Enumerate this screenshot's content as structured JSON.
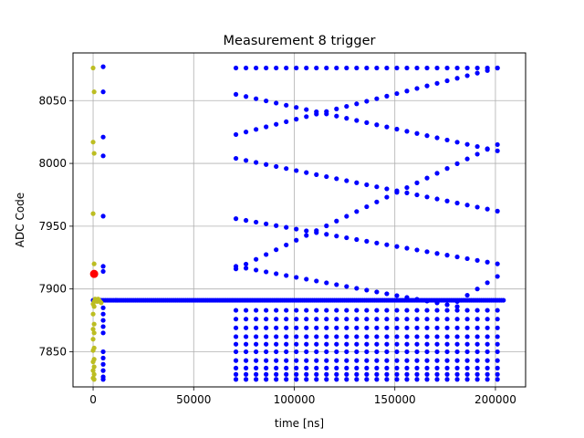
{
  "chart_data": {
    "type": "scatter",
    "title": "Measurement 8 trigger",
    "xlabel": "time [ns]",
    "ylabel": "ADC Code",
    "xlim": [
      -10000,
      215000
    ],
    "ylim": [
      7822,
      8088
    ],
    "x_ticks": [
      0,
      50000,
      100000,
      150000,
      200000
    ],
    "y_ticks": [
      7850,
      7900,
      7950,
      8000,
      8050
    ],
    "grid": true,
    "colors": {
      "main": "#0000ff",
      "early": "#bcbd22",
      "trigger": "#ff0000"
    },
    "series": [
      {
        "kind": "baseline",
        "color": "main",
        "x_start": 0,
        "x_end": 204000,
        "step": 1000,
        "y": 7891
      },
      {
        "kind": "early-yellow",
        "color": "early",
        "x": [
          0,
          500,
          0,
          500,
          0,
          500,
          0,
          500,
          0,
          500,
          0,
          500,
          0,
          500,
          0,
          500,
          0,
          500,
          0,
          500,
          0,
          500,
          0,
          500,
          1000,
          1500,
          2000,
          2500,
          3000,
          3500,
          4000
        ],
        "y": [
          8076,
          8057,
          8017,
          8008,
          7960,
          7920,
          7912,
          7890,
          7888,
          7886,
          7880,
          7872,
          7868,
          7865,
          7860,
          7853,
          7851,
          7844,
          7842,
          7838,
          7835,
          7832,
          7829,
          7828,
          7892,
          7891,
          7890,
          7892,
          7891,
          7890,
          7889
        ]
      },
      {
        "kind": "early-blue",
        "color": "main",
        "x": [
          5000,
          5000,
          5000,
          5000,
          5000,
          5000,
          5000,
          5000,
          5000,
          5000,
          5000,
          5000,
          5000,
          5000,
          5000,
          5000,
          5000,
          5000
        ],
        "y": [
          8077,
          8057,
          8021,
          8006,
          7958,
          7918,
          7914,
          7885,
          7880,
          7875,
          7870,
          7865,
          7850,
          7845,
          7840,
          7835,
          7830,
          7828
        ]
      },
      {
        "kind": "ramp-up",
        "color": "main",
        "x_start": 71000,
        "x_end": 201000,
        "step": 5000,
        "y_start": 8023,
        "y_end": 8076
      },
      {
        "kind": "ramp-down",
        "color": "main",
        "x_start": 71000,
        "x_end": 201000,
        "step": 5000,
        "y_start": 8055,
        "y_end": 8010
      },
      {
        "kind": "ramp-down",
        "color": "main",
        "x_start": 71000,
        "x_end": 201000,
        "step": 5000,
        "y_start": 8004,
        "y_end": 7962
      },
      {
        "kind": "ramp-down",
        "color": "main",
        "x_start": 71000,
        "x_end": 201000,
        "step": 5000,
        "y_start": 7956,
        "y_end": 7920
      },
      {
        "kind": "ramp-up",
        "color": "main",
        "x_start": 71000,
        "x_end": 201000,
        "step": 5000,
        "y_start": 7916,
        "y_end": 8015
      },
      {
        "kind": "ramp-down",
        "color": "main",
        "x_start": 71000,
        "x_end": 181000,
        "step": 5000,
        "y_start": 7918,
        "y_end": 7886
      },
      {
        "kind": "ramp-up",
        "color": "main",
        "x_start": 181000,
        "x_end": 201000,
        "step": 5000,
        "y_start": 7890,
        "y_end": 7910
      },
      {
        "kind": "flat",
        "color": "main",
        "x_start": 71000,
        "x_end": 201000,
        "step": 5000,
        "y": 8076
      },
      {
        "kind": "cluster-band",
        "color": "main",
        "x_start": 71000,
        "x_end": 201000,
        "step": 5000,
        "y_values": [
          7883,
          7876,
          7869,
          7862,
          7856,
          7850,
          7843,
          7837,
          7832,
          7828
        ]
      }
    ],
    "trigger_point": {
      "x": 500,
      "y": 7912
    }
  }
}
